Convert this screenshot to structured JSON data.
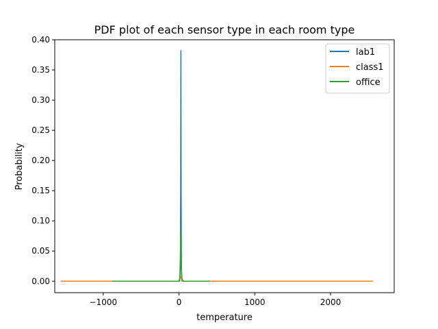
{
  "chart_data": {
    "type": "line",
    "title": "PDF plot of each sensor type in each room type",
    "xlabel": "temperature",
    "ylabel": "Probability",
    "xlim": [
      -1640,
      2840
    ],
    "ylim": [
      -0.019,
      0.4
    ],
    "xticks": [
      -1000,
      0,
      1000,
      2000
    ],
    "xtick_labels": [
      "−1000",
      "0",
      "1000",
      "2000"
    ],
    "yticks": [
      0.0,
      0.05,
      0.1,
      0.15,
      0.2,
      0.25,
      0.3,
      0.35,
      0.4
    ],
    "ytick_labels": [
      "0.00",
      "0.05",
      "0.10",
      "0.15",
      "0.20",
      "0.25",
      "0.30",
      "0.35",
      "0.40"
    ],
    "grid": false,
    "legend_position": "top-right",
    "series": [
      {
        "name": "lab1",
        "color": "#1f77b4",
        "x": [
          -900,
          -300,
          10,
          18,
          22,
          25,
          28,
          32,
          40,
          60,
          300,
          400
        ],
        "y": [
          0,
          0,
          0,
          0.02,
          0.15,
          0.382,
          0.15,
          0.02,
          0,
          0,
          0,
          0
        ]
      },
      {
        "name": "class1",
        "color": "#ff7f0e",
        "x": [
          -1560,
          -500,
          0,
          10,
          20,
          25,
          30,
          40,
          60,
          1000,
          2560
        ],
        "y": [
          0,
          0,
          0,
          0.002,
          0.007,
          0.008,
          0.006,
          0.001,
          0,
          0,
          0
        ]
      },
      {
        "name": "office",
        "color": "#2ca02c",
        "x": [
          -880,
          -300,
          0,
          10,
          18,
          22,
          25,
          28,
          32,
          40,
          60,
          410
        ],
        "y": [
          0,
          0,
          0,
          0.005,
          0.04,
          0.075,
          0.085,
          0.06,
          0.02,
          0.003,
          0,
          0
        ]
      }
    ]
  }
}
